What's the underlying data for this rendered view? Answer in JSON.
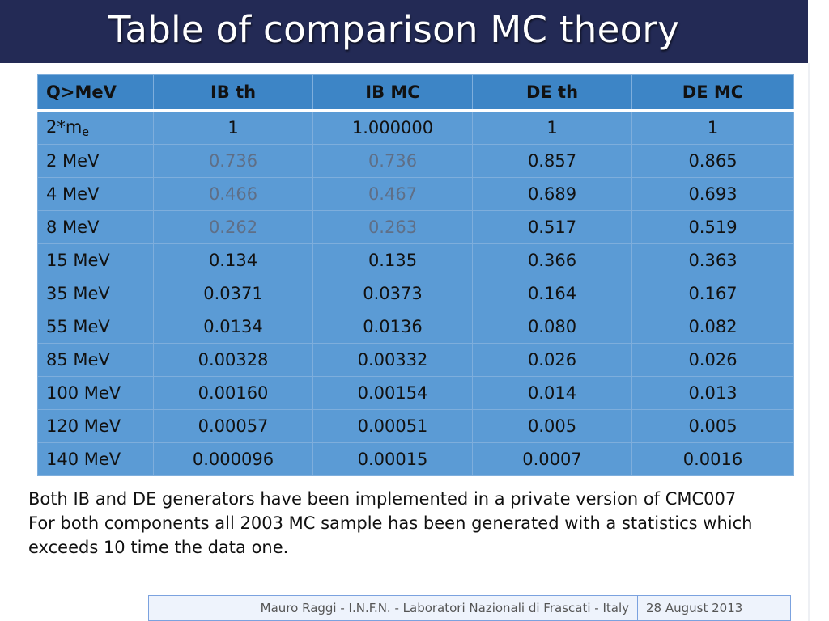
{
  "title": "Table of comparison MC theory",
  "table": {
    "headers": [
      "Q>MeV",
      "IB th",
      "IB MC",
      "DE th",
      "DE MC"
    ],
    "first_row_label": {
      "base": "2*m",
      "sub": "e"
    },
    "rows": [
      [
        "",
        "1",
        "1.000000",
        "1",
        "1"
      ],
      [
        "2 MeV",
        "0.736",
        "0.736",
        "0.857",
        "0.865"
      ],
      [
        "4 MeV",
        "0.466",
        "0.467",
        "0.689",
        "0.693"
      ],
      [
        "8 MeV",
        "0.262",
        "0.263",
        "0.517",
        "0.519"
      ],
      [
        "15 MeV",
        "0.134",
        "0.135",
        "0.366",
        "0.363"
      ],
      [
        "35 MeV",
        "0.0371",
        "0.0373",
        "0.164",
        "0.167"
      ],
      [
        "55 MeV",
        "0.0134",
        "0.0136",
        "0.080",
        "0.082"
      ],
      [
        "85 MeV",
        "0.00328",
        "0.00332",
        "0.026",
        "0.026"
      ],
      [
        "100 MeV",
        "0.00160",
        "0.00154",
        "0.014",
        "0.013"
      ],
      [
        "120 MeV",
        "0.00057",
        "0.00051",
        "0.005",
        "0.005"
      ],
      [
        "140 MeV",
        "0.000096",
        "0.00015",
        "0.0007",
        "0.0016"
      ]
    ]
  },
  "notes": [
    "Both IB and DE generators have been implemented in a private version of CMC007",
    "For both components all 2003 MC sample has been generated with a statistics which exceeds 10 time the data one."
  ],
  "footer": {
    "left": "Mauro Raggi - I.N.F.N. - Laboratori Nazionali di Frascati - Italy",
    "right": "28 August 2013"
  },
  "colors": {
    "title_bar": "#232a55",
    "header_row": "#3d85c6",
    "body_rows": "#5b9bd5",
    "muted_text": "#5f6f87"
  }
}
